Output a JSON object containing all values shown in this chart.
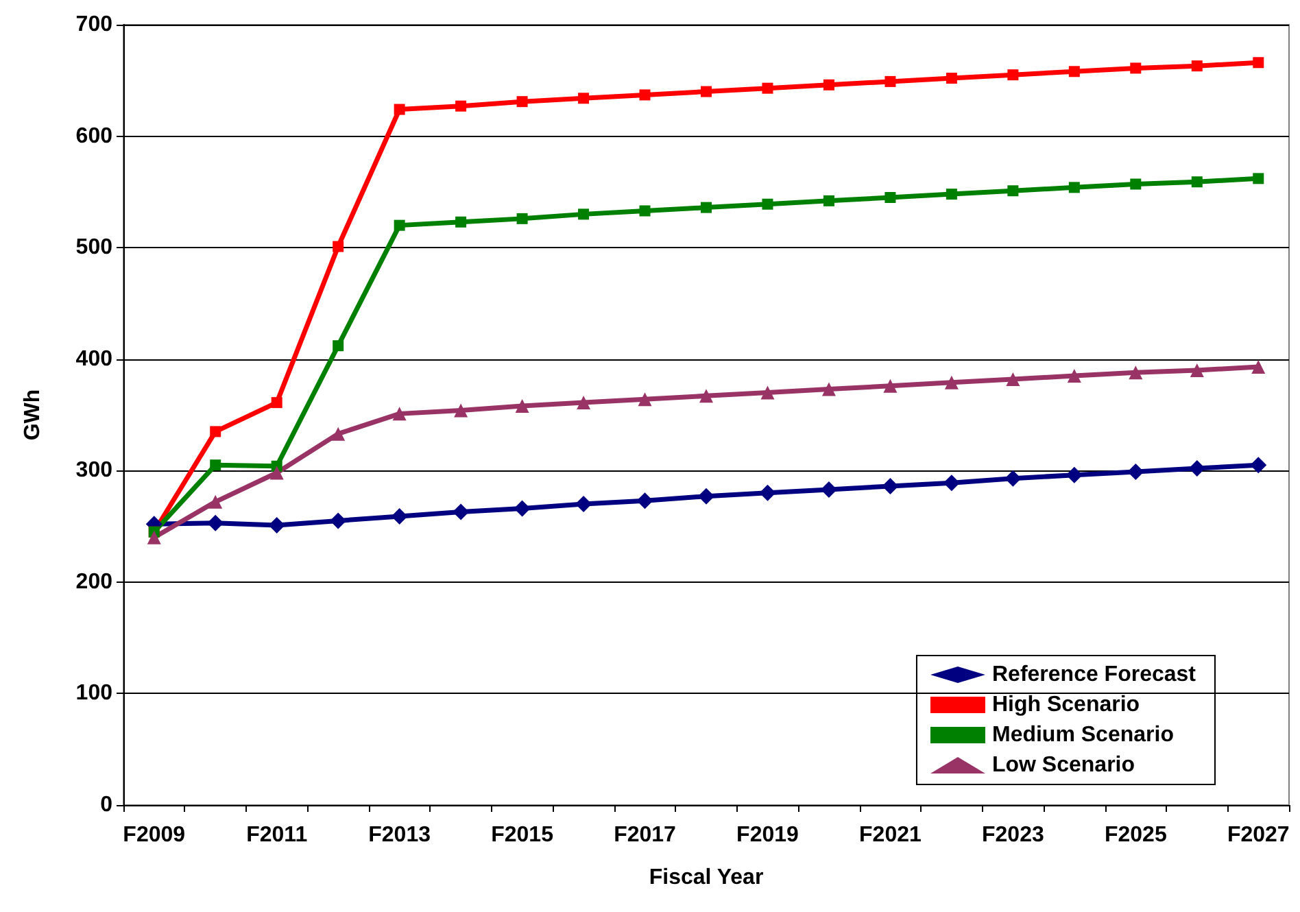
{
  "chart_data": {
    "type": "line",
    "xlabel": "Fiscal Year",
    "ylabel": "GWh",
    "categories": [
      "F2009",
      null,
      "F2011",
      null,
      "F2013",
      null,
      "F2015",
      null,
      "F2017",
      null,
      "F2019",
      null,
      "F2021",
      null,
      "F2023",
      null,
      "F2025",
      null,
      "F2027"
    ],
    "series": [
      {
        "name": "Reference Forecast",
        "color": "#000080",
        "marker": "diamond",
        "values": [
          252,
          253,
          251,
          255,
          259,
          263,
          266,
          270,
          273,
          277,
          280,
          283,
          286,
          289,
          293,
          296,
          299,
          302,
          305
        ]
      },
      {
        "name": "High Scenario",
        "color": "#ff0000",
        "marker": "square",
        "values": [
          245,
          335,
          361,
          501,
          624,
          627,
          631,
          634,
          637,
          640,
          643,
          646,
          649,
          652,
          655,
          658,
          661,
          663,
          666
        ]
      },
      {
        "name": "Medium Scenario",
        "color": "#008000",
        "marker": "square",
        "values": [
          245,
          305,
          304,
          412,
          520,
          523,
          526,
          530,
          533,
          536,
          539,
          542,
          545,
          548,
          551,
          554,
          557,
          559,
          562
        ]
      },
      {
        "name": "Low Scenario",
        "color": "#993366",
        "marker": "triangle",
        "values": [
          240,
          272,
          298,
          333,
          351,
          354,
          358,
          361,
          364,
          367,
          370,
          373,
          376,
          379,
          382,
          385,
          388,
          390,
          393
        ]
      }
    ],
    "ylim": [
      0,
      700
    ],
    "yticks": [
      0,
      100,
      200,
      300,
      400,
      500,
      600,
      700
    ],
    "grid": "y",
    "legend": "bottom right",
    "line_style": "solid"
  }
}
